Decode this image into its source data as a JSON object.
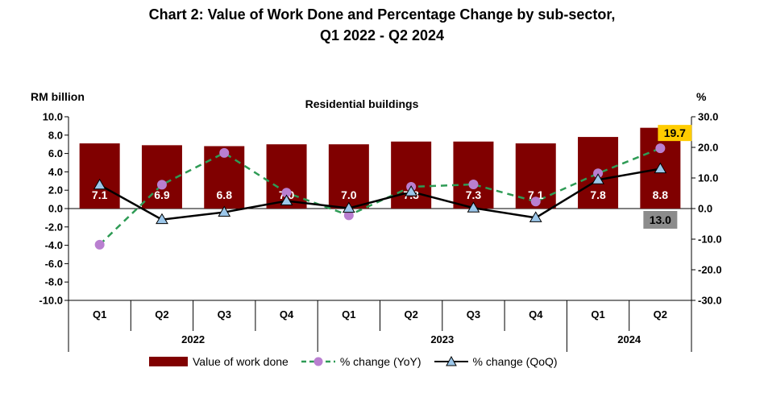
{
  "title_line1": "Chart 2: Value of Work Done and Percentage Change by sub-sector,",
  "title_line2": "Q1 2022 - Q2 2024",
  "colors": {
    "bar": "#800000",
    "yoy": "#2e9b55",
    "yoy_marker": "#b97fd0",
    "qoq": "#000000",
    "qoq_marker": "#9cc7ea",
    "highlight": "#ffcc00",
    "highlight_grey": "#8c8c8c"
  },
  "chart_data": {
    "type": "bar",
    "subtitle": "Residential buildings",
    "ylabel_left": "RM billion",
    "ylabel_right": "%",
    "ylim_left": [
      -10,
      10
    ],
    "ylim_right": [
      -30,
      30
    ],
    "yticks_left": [
      "10.0",
      "8.0",
      "6.0",
      "4.0",
      "2.0",
      "0.0",
      "-2.0",
      "-4.0",
      "-6.0",
      "-8.0",
      "-10.0"
    ],
    "yticks_right": [
      "30.0",
      "20.0",
      "10.0",
      "0.0",
      "-10.0",
      "-20.0",
      "-30.0"
    ],
    "categories": [
      "Q1",
      "Q2",
      "Q3",
      "Q4",
      "Q1",
      "Q2",
      "Q3",
      "Q4",
      "Q1",
      "Q2"
    ],
    "years": [
      {
        "label": "2022",
        "span": [
          0,
          3
        ]
      },
      {
        "label": "2023",
        "span": [
          4,
          7
        ]
      },
      {
        "label": "2024",
        "span": [
          8,
          9
        ]
      }
    ],
    "grid": false,
    "legend_position": "bottom",
    "series": [
      {
        "name": "Value of  work done",
        "type": "bar",
        "axis": "left",
        "values": [
          7.1,
          6.9,
          6.8,
          7.0,
          7.0,
          7.3,
          7.3,
          7.1,
          7.8,
          8.8
        ],
        "labels": [
          "7.1",
          "6.9",
          "6.8",
          "7.0",
          "7.0",
          "7.3",
          "7.3",
          "7.1",
          "7.8",
          "8.8"
        ]
      },
      {
        "name": "% change (YoY)",
        "type": "line",
        "axis": "right",
        "values": [
          -11.8,
          7.8,
          18.2,
          5.2,
          -2.2,
          7.1,
          7.9,
          2.3,
          11.5,
          19.7
        ]
      },
      {
        "name": "% change (QoQ)",
        "type": "line",
        "axis": "right",
        "values": [
          7.7,
          -3.6,
          -1.2,
          2.5,
          0.1,
          5.5,
          0.2,
          -3.0,
          9.4,
          13.0
        ]
      }
    ],
    "annotations": [
      {
        "series": 1,
        "index": 9,
        "text": "19.7"
      },
      {
        "series": 2,
        "index": 9,
        "text": "13.0"
      }
    ]
  }
}
